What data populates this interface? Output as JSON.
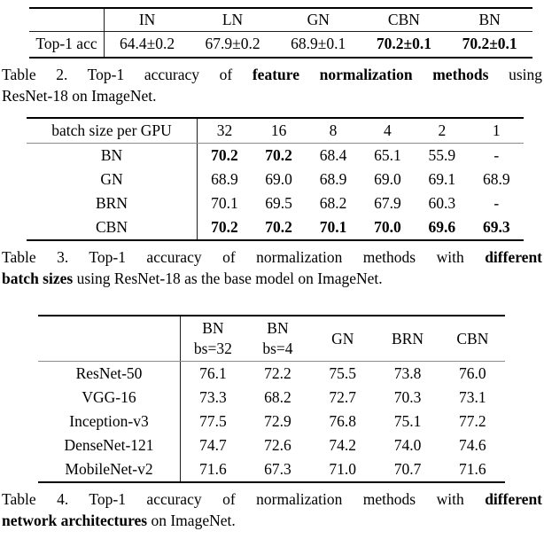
{
  "page": {
    "background": "#ffffff",
    "text_color": "#000000",
    "rule_color": "#000000",
    "header_rule_color": "#8b8b8b"
  },
  "table2": {
    "columns": [
      "",
      "IN",
      "LN",
      "GN",
      "CBN",
      "BN"
    ],
    "rows": [
      {
        "label": "Top-1 acc",
        "cells": [
          {
            "text": "64.4±0.2",
            "bold": false
          },
          {
            "text": "67.9±0.2",
            "bold": false
          },
          {
            "text": "68.9±0.1",
            "bold": false
          },
          {
            "text": "70.2±0.1",
            "bold": true
          },
          {
            "text": "70.2±0.1",
            "bold": true
          }
        ]
      }
    ],
    "caption_lines": [
      [
        {
          "text": "Table 2. Top-1 accuracy of ",
          "bold": false
        },
        {
          "text": "feature normalization methods",
          "bold": true
        },
        {
          "text": " using",
          "bold": false
        }
      ],
      [
        {
          "text": "ResNet-18 on ImageNet.",
          "bold": false
        }
      ]
    ]
  },
  "table3": {
    "header_label": "batch size per GPU",
    "columns": [
      "32",
      "16",
      "8",
      "4",
      "2",
      "1"
    ],
    "rows": [
      {
        "label": "BN",
        "cells": [
          {
            "text": "70.2",
            "bold": true
          },
          {
            "text": "70.2",
            "bold": true
          },
          {
            "text": "68.4",
            "bold": false
          },
          {
            "text": "65.1",
            "bold": false
          },
          {
            "text": "55.9",
            "bold": false
          },
          {
            "text": "-",
            "bold": false
          }
        ]
      },
      {
        "label": "GN",
        "cells": [
          {
            "text": "68.9",
            "bold": false
          },
          {
            "text": "69.0",
            "bold": false
          },
          {
            "text": "68.9",
            "bold": false
          },
          {
            "text": "69.0",
            "bold": false
          },
          {
            "text": "69.1",
            "bold": false
          },
          {
            "text": "68.9",
            "bold": false
          }
        ]
      },
      {
        "label": "BRN",
        "cells": [
          {
            "text": "70.1",
            "bold": false
          },
          {
            "text": "69.5",
            "bold": false
          },
          {
            "text": "68.2",
            "bold": false
          },
          {
            "text": "67.9",
            "bold": false
          },
          {
            "text": "60.3",
            "bold": false
          },
          {
            "text": "-",
            "bold": false
          }
        ]
      },
      {
        "label": "CBN",
        "cells": [
          {
            "text": "70.2",
            "bold": true
          },
          {
            "text": "70.2",
            "bold": true
          },
          {
            "text": "70.1",
            "bold": true
          },
          {
            "text": "70.0",
            "bold": true
          },
          {
            "text": "69.6",
            "bold": true
          },
          {
            "text": "69.3",
            "bold": true
          }
        ]
      }
    ],
    "caption_lines": [
      [
        {
          "text": "Table 3. Top-1 accuracy of normalization methods with ",
          "bold": false
        },
        {
          "text": "different",
          "bold": true
        }
      ],
      [
        {
          "text": "batch sizes",
          "bold": true
        },
        {
          "text": " using ResNet-18 as the base model on ImageNet.",
          "bold": false
        }
      ]
    ]
  },
  "table4": {
    "columns": [
      {
        "line1": "BN",
        "line2": "bs=32"
      },
      {
        "line1": "BN",
        "line2": "bs=4"
      },
      {
        "line1": "GN",
        "line2": ""
      },
      {
        "line1": "BRN",
        "line2": ""
      },
      {
        "line1": "CBN",
        "line2": ""
      }
    ],
    "rows": [
      {
        "label": "ResNet-50",
        "cells": [
          {
            "text": "76.1",
            "bold": false
          },
          {
            "text": "72.2",
            "bold": false
          },
          {
            "text": "75.5",
            "bold": false
          },
          {
            "text": "73.8",
            "bold": false
          },
          {
            "text": "76.0",
            "bold": false
          }
        ]
      },
      {
        "label": "VGG-16",
        "cells": [
          {
            "text": "73.3",
            "bold": false
          },
          {
            "text": "68.2",
            "bold": false
          },
          {
            "text": "72.7",
            "bold": false
          },
          {
            "text": "70.3",
            "bold": false
          },
          {
            "text": "73.1",
            "bold": false
          }
        ]
      },
      {
        "label": "Inception-v3",
        "cells": [
          {
            "text": "77.5",
            "bold": false
          },
          {
            "text": "72.9",
            "bold": false
          },
          {
            "text": "76.8",
            "bold": false
          },
          {
            "text": "75.1",
            "bold": false
          },
          {
            "text": "77.2",
            "bold": false
          }
        ]
      },
      {
        "label": "DenseNet-121",
        "cells": [
          {
            "text": "74.7",
            "bold": false
          },
          {
            "text": "72.6",
            "bold": false
          },
          {
            "text": "74.2",
            "bold": false
          },
          {
            "text": "74.0",
            "bold": false
          },
          {
            "text": "74.6",
            "bold": false
          }
        ]
      },
      {
        "label": "MobileNet-v2",
        "cells": [
          {
            "text": "71.6",
            "bold": false
          },
          {
            "text": "67.3",
            "bold": false
          },
          {
            "text": "71.0",
            "bold": false
          },
          {
            "text": "70.7",
            "bold": false
          },
          {
            "text": "71.6",
            "bold": false
          }
        ]
      }
    ],
    "caption_lines": [
      [
        {
          "text": "Table 4. Top-1 accuracy of normalization methods with ",
          "bold": false
        },
        {
          "text": "different",
          "bold": true
        }
      ],
      [
        {
          "text": "network architectures",
          "bold": true
        },
        {
          "text": " on ImageNet.",
          "bold": false
        }
      ]
    ]
  }
}
